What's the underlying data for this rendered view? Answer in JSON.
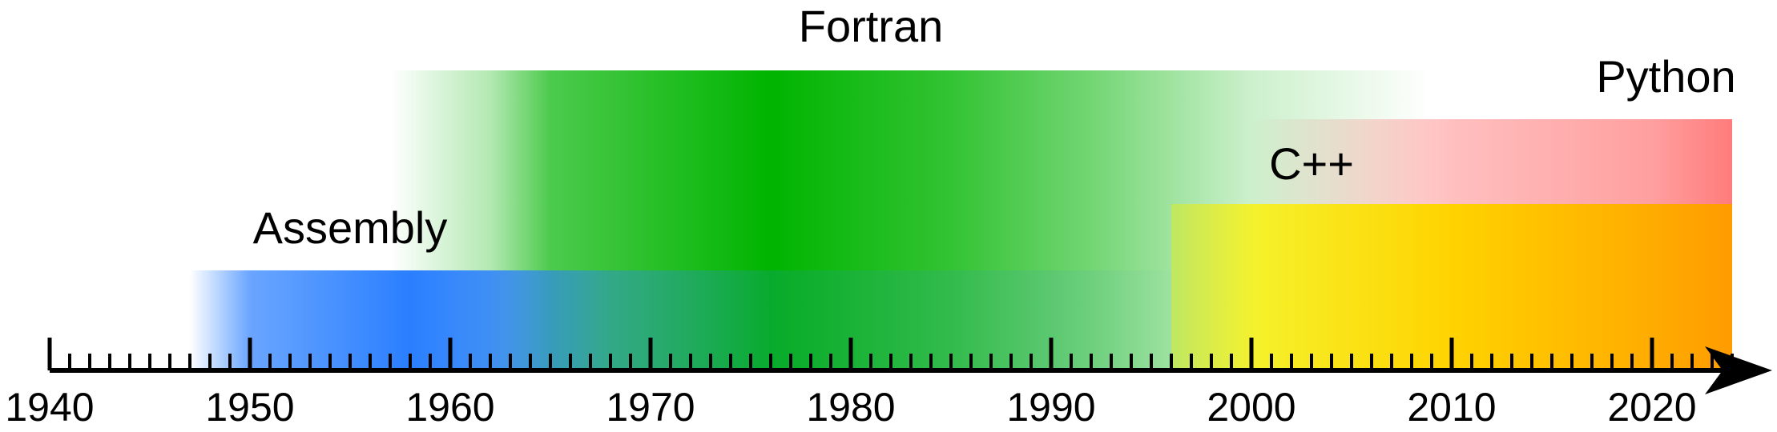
{
  "chart_data": {
    "type": "timeline",
    "axis": {
      "min_year": 1940,
      "max_year": 2024,
      "major_step": 10,
      "minor_step": 1,
      "tick_labels": [
        "1940",
        "1950",
        "1960",
        "1970",
        "1980",
        "1990",
        "2000",
        "2010",
        "2020"
      ]
    },
    "languages": [
      {
        "name": "Assembly",
        "color": "#2a7fff",
        "stops": [
          {
            "year": 1947,
            "opacity": 0
          },
          {
            "year": 1950,
            "opacity": 0.7
          },
          {
            "year": 1958,
            "opacity": 1
          },
          {
            "year": 1962,
            "opacity": 0.85
          },
          {
            "year": 1968,
            "opacity": 0.4
          },
          {
            "year": 1977,
            "opacity": 0.15
          },
          {
            "year": 1990,
            "opacity": 0.1
          },
          {
            "year": 1997,
            "opacity": 0
          }
        ]
      },
      {
        "name": "Fortran",
        "color": "#00b400",
        "stops": [
          {
            "year": 1957,
            "opacity": 0
          },
          {
            "year": 1962,
            "opacity": 0.3
          },
          {
            "year": 1965,
            "opacity": 0.7
          },
          {
            "year": 1976,
            "opacity": 1
          },
          {
            "year": 1985,
            "opacity": 0.8
          },
          {
            "year": 1992,
            "opacity": 0.55
          },
          {
            "year": 2000,
            "opacity": 0.2
          },
          {
            "year": 2009,
            "opacity": 0
          }
        ]
      },
      {
        "name": "C++",
        "color": "#ffe600",
        "stops": [
          {
            "year": 1996,
            "opacity": 0.35
          },
          {
            "year": 1999,
            "opacity": 0.6
          },
          {
            "year": 2002,
            "opacity": 0.8
          },
          {
            "year": 2024,
            "opacity": 0.8
          }
        ]
      },
      {
        "name": "Python",
        "color": "#ff2a2a",
        "stops": [
          {
            "year": 2000,
            "opacity": 0
          },
          {
            "year": 2010,
            "opacity": 0.3
          },
          {
            "year": 2020,
            "opacity": 0.45
          },
          {
            "year": 2024,
            "opacity": 0.62
          }
        ]
      }
    ],
    "base_colors": {
      "axis": "#000000",
      "cpp_base": "#ffcc00",
      "cpp_end": "#ff7f00"
    }
  }
}
